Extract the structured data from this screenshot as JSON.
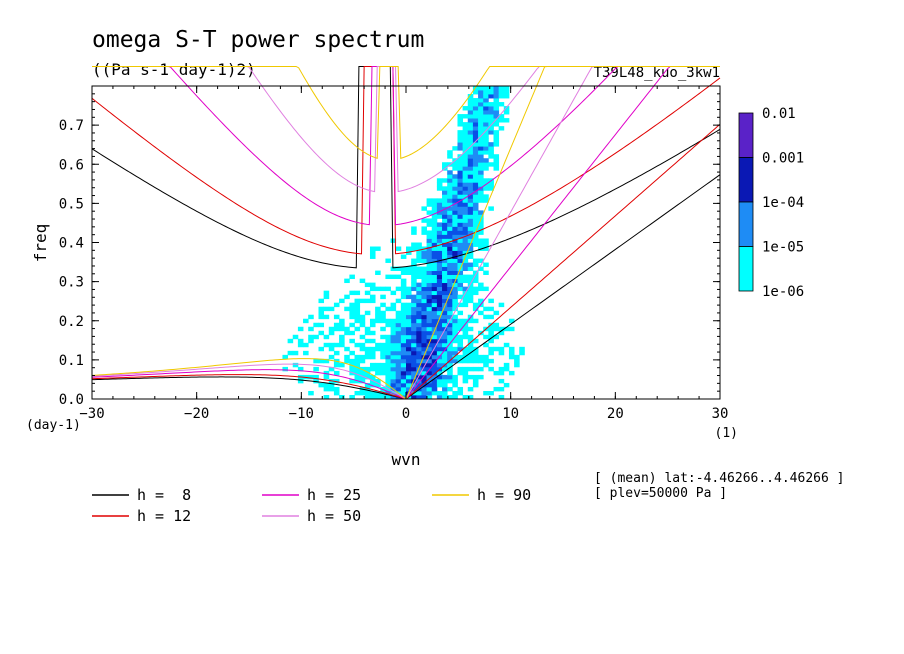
{
  "chart_data": {
    "type": "heatmap",
    "title": "omega S-T power spectrum",
    "subtitle": "((Pa s-1 day-1)2)",
    "run_label": "T39L48_kuo_3kw1",
    "xlabel": "wvn",
    "ylabel": "freq",
    "x_unit": "(1)",
    "y_unit": "(day-1)",
    "xlim": [
      -30,
      30
    ],
    "ylim": [
      0,
      0.8
    ],
    "x_ticks": [
      "-30",
      "-20",
      "-10",
      "0",
      "10",
      "20",
      "30"
    ],
    "y_ticks": [
      "0.0",
      "0.1",
      "0.2",
      "0.3",
      "0.4",
      "0.5",
      "0.6",
      "0.7"
    ],
    "colorbar": {
      "labels": [
        "0.01",
        "0.001",
        "1e-04",
        "1e-05",
        "1e-06"
      ],
      "colors": [
        "#5a22c8",
        "#0a18b4",
        "#0a50e6",
        "#1e8cf5",
        "#00ffff"
      ]
    },
    "dispersion_curves": [
      {
        "name": "h =  8",
        "color": "#000000"
      },
      {
        "name": "h = 12",
        "color": "#e00000"
      },
      {
        "name": "h = 25",
        "color": "#e000c8"
      },
      {
        "name": "h = 50",
        "color": "#e080e0"
      },
      {
        "name": "h = 90",
        "color": "#f0c800"
      }
    ],
    "notes": [
      "[ (mean) lat:-4.46266..4.46266 ]",
      "[ plev=50000 Pa ]"
    ]
  }
}
